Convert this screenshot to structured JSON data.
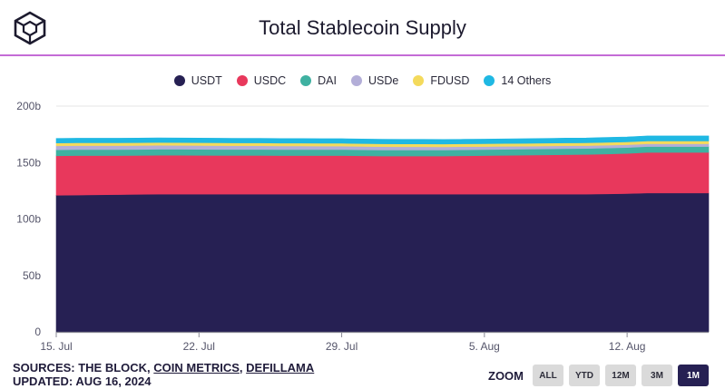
{
  "header": {
    "title": "Total Stablecoin Supply",
    "logo_icon": "the-block-cube-logo"
  },
  "legend": [
    {
      "name": "USDT",
      "color": "#262053"
    },
    {
      "name": "USDC",
      "color": "#e8385c"
    },
    {
      "name": "DAI",
      "color": "#3fb1a1"
    },
    {
      "name": "USDe",
      "color": "#b3aed8"
    },
    {
      "name": "FDUSD",
      "color": "#f4da5c"
    },
    {
      "name": "14 Others",
      "color": "#1fb8e3"
    }
  ],
  "footer": {
    "sources_prefix": "SOURCES: THE BLOCK, ",
    "source_coin_metrics": "COIN METRICS",
    "source_sep": ", ",
    "source_defillama": "DEFILLAMA",
    "updated": "UPDATED: AUG 16, 2024"
  },
  "zoom": {
    "label": "ZOOM",
    "buttons": [
      "ALL",
      "YTD",
      "12M",
      "3M",
      "1M"
    ],
    "active": "1M"
  },
  "chart_data": {
    "type": "area",
    "stacked": true,
    "title": "Total Stablecoin Supply",
    "xlabel": "",
    "ylabel": "",
    "ylim": [
      0,
      200
    ],
    "y_ticks": [
      0,
      50,
      100,
      150,
      200
    ],
    "y_tick_labels": [
      "0",
      "50b",
      "100b",
      "150b",
      "200b"
    ],
    "x_tick_labels": [
      "15. Jul",
      "22. Jul",
      "29. Jul",
      "5. Aug",
      "12. Aug"
    ],
    "x_tick_index": [
      0,
      7,
      14,
      21,
      28
    ],
    "x": [
      "Jul 15",
      "Jul 16",
      "Jul 17",
      "Jul 18",
      "Jul 19",
      "Jul 20",
      "Jul 21",
      "Jul 22",
      "Jul 23",
      "Jul 24",
      "Jul 25",
      "Jul 26",
      "Jul 27",
      "Jul 28",
      "Jul 29",
      "Jul 30",
      "Jul 31",
      "Aug 1",
      "Aug 2",
      "Aug 3",
      "Aug 4",
      "Aug 5",
      "Aug 6",
      "Aug 7",
      "Aug 8",
      "Aug 9",
      "Aug 10",
      "Aug 11",
      "Aug 12",
      "Aug 13",
      "Aug 14",
      "Aug 15",
      "Aug 16"
    ],
    "series": [
      {
        "name": "USDT",
        "values": [
          121,
          121.2,
          121.4,
          121.6,
          121.8,
          122,
          122,
          122,
          122,
          122,
          122,
          122,
          122,
          122,
          122,
          122,
          122,
          122,
          122,
          122,
          122,
          122,
          122,
          122,
          122,
          122,
          122,
          122.2,
          122.5,
          123,
          123,
          123,
          123
        ]
      },
      {
        "name": "USDC",
        "values": [
          35,
          35,
          34.8,
          34.6,
          34.5,
          34.5,
          34.5,
          34.4,
          34.3,
          34.3,
          34.3,
          34.2,
          34.2,
          34.2,
          34.2,
          34,
          33.8,
          33.8,
          33.8,
          33.8,
          34,
          34.2,
          34.4,
          34.6,
          34.8,
          35,
          35.2,
          35.4,
          35.6,
          36,
          36,
          36,
          36
        ]
      },
      {
        "name": "DAI",
        "values": [
          5.3,
          5.3,
          5.3,
          5.3,
          5.3,
          5.3,
          5.3,
          5.3,
          5.3,
          5.3,
          5.3,
          5.3,
          5.3,
          5.3,
          5.3,
          5.3,
          5.3,
          5.3,
          5.3,
          5.3,
          5.3,
          5.3,
          5.3,
          5.3,
          5.3,
          5.3,
          5.3,
          5.3,
          5.2,
          5.2,
          5.2,
          5.2,
          5.2
        ]
      },
      {
        "name": "USDe",
        "values": [
          3.5,
          3.5,
          3.5,
          3.5,
          3.5,
          3.5,
          3.4,
          3.4,
          3.4,
          3.3,
          3.3,
          3.2,
          3.2,
          3.1,
          3.1,
          3.0,
          3.0,
          2.9,
          2.9,
          2.8,
          2.8,
          2.7,
          2.7,
          2.6,
          2.6,
          2.6,
          2.5,
          2.5,
          2.5,
          2.4,
          2.4,
          2.4,
          2.4
        ]
      },
      {
        "name": "FDUSD",
        "values": [
          2.5,
          2.5,
          2.5,
          2.5,
          2.5,
          2.5,
          2.5,
          2.5,
          2.5,
          2.5,
          2.5,
          2.5,
          2.5,
          2.5,
          2.5,
          2.5,
          2.5,
          2.5,
          2.5,
          2.5,
          2.5,
          2.5,
          2.5,
          2.5,
          2.5,
          2.5,
          2.5,
          2.5,
          2.5,
          2.5,
          2.5,
          2.5,
          2.5
        ]
      },
      {
        "name": "14 Others",
        "values": [
          4,
          4,
          4,
          4,
          4,
          4,
          4,
          4,
          4,
          4,
          4,
          4,
          4,
          4,
          4,
          4,
          4,
          4,
          4,
          4,
          4,
          4,
          4,
          4.1,
          4.1,
          4.2,
          4.2,
          4.3,
          4.4,
          4.5,
          4.5,
          4.5,
          4.5
        ]
      }
    ]
  }
}
